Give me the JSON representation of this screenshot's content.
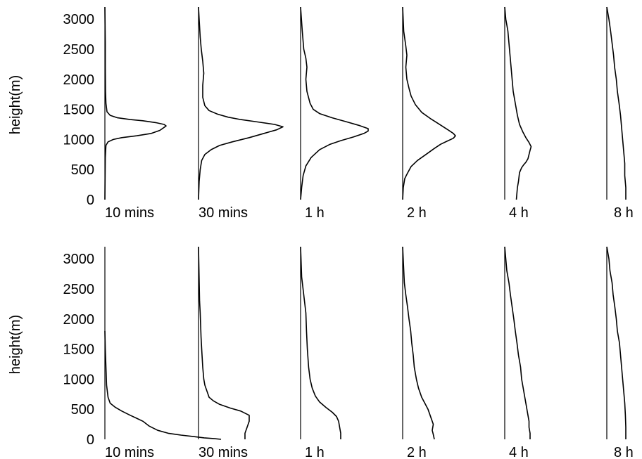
{
  "chart_data": [
    {
      "type": "line",
      "ylabel": "height(m)",
      "ylim": [
        0,
        3200
      ],
      "yticks": [
        0,
        500,
        1000,
        1500,
        2000,
        2500,
        3000
      ],
      "series": [
        {
          "name": "10 mins",
          "points": [
            [
              0,
              0
            ],
            [
              0.2,
              700
            ],
            [
              0.5,
              900
            ],
            [
              1.5,
              960
            ],
            [
              4,
              1000
            ],
            [
              8,
              1030
            ],
            [
              15,
              1060
            ],
            [
              22,
              1100
            ],
            [
              26,
              1150
            ],
            [
              28,
              1200
            ],
            [
              29,
              1225
            ],
            [
              28,
              1250
            ],
            [
              24,
              1280
            ],
            [
              18,
              1310
            ],
            [
              12,
              1330
            ],
            [
              6,
              1360
            ],
            [
              2.5,
              1400
            ],
            [
              1,
              1460
            ],
            [
              0.5,
              1600
            ],
            [
              0.3,
              1800
            ],
            [
              0.2,
              2200
            ],
            [
              0.2,
              2600
            ],
            [
              0,
              3200
            ]
          ]
        },
        {
          "name": "30 mins",
          "points": [
            [
              0,
              0
            ],
            [
              0.3,
              300
            ],
            [
              0.8,
              500
            ],
            [
              1.5,
              650
            ],
            [
              3,
              750
            ],
            [
              6,
              830
            ],
            [
              10,
              900
            ],
            [
              16,
              960
            ],
            [
              24,
              1030
            ],
            [
              31,
              1100
            ],
            [
              37,
              1160
            ],
            [
              40,
              1210
            ],
            [
              36,
              1250
            ],
            [
              28,
              1290
            ],
            [
              20,
              1330
            ],
            [
              14,
              1370
            ],
            [
              9,
              1420
            ],
            [
              5,
              1480
            ],
            [
              3,
              1560
            ],
            [
              2,
              1700
            ],
            [
              2,
              1900
            ],
            [
              2.5,
              2100
            ],
            [
              2,
              2300
            ],
            [
              1.3,
              2500
            ],
            [
              0.8,
              2700
            ],
            [
              0.3,
              3000
            ],
            [
              0,
              3200
            ]
          ]
        },
        {
          "name": "1 h",
          "points": [
            [
              0,
              0
            ],
            [
              0.5,
              200
            ],
            [
              1.2,
              400
            ],
            [
              2.5,
              560
            ],
            [
              5,
              700
            ],
            [
              9,
              830
            ],
            [
              14,
              920
            ],
            [
              19,
              980
            ],
            [
              25,
              1040
            ],
            [
              30,
              1100
            ],
            [
              32,
              1140
            ],
            [
              32,
              1180
            ],
            [
              28,
              1230
            ],
            [
              22,
              1290
            ],
            [
              15,
              1360
            ],
            [
              9,
              1430
            ],
            [
              6,
              1500
            ],
            [
              4.5,
              1600
            ],
            [
              3,
              1800
            ],
            [
              2.5,
              2000
            ],
            [
              3,
              2200
            ],
            [
              2.5,
              2350
            ],
            [
              1.5,
              2500
            ],
            [
              0.8,
              2800
            ],
            [
              0,
              3200
            ]
          ]
        },
        {
          "name": "2 h",
          "points": [
            [
              0,
              0
            ],
            [
              0.3,
              200
            ],
            [
              1,
              350
            ],
            [
              2,
              420
            ],
            [
              4,
              550
            ],
            [
              7,
              650
            ],
            [
              11,
              750
            ],
            [
              15,
              850
            ],
            [
              18,
              920
            ],
            [
              21,
              970
            ],
            [
              24,
              1020
            ],
            [
              25,
              1060
            ],
            [
              24,
              1100
            ],
            [
              21,
              1170
            ],
            [
              17,
              1260
            ],
            [
              13,
              1350
            ],
            [
              9,
              1450
            ],
            [
              6,
              1580
            ],
            [
              4,
              1720
            ],
            [
              3,
              1850
            ],
            [
              2,
              2000
            ],
            [
              1.5,
              2200
            ],
            [
              2,
              2400
            ],
            [
              1.5,
              2550
            ],
            [
              0.5,
              2800
            ],
            [
              0,
              3200
            ]
          ]
        },
        {
          "name": "4 h",
          "points": [
            [
              5.5,
              0
            ],
            [
              6,
              200
            ],
            [
              6.5,
              300
            ],
            [
              7,
              450
            ],
            [
              8,
              530
            ],
            [
              9,
              580
            ],
            [
              10,
              620
            ],
            [
              11,
              680
            ],
            [
              11.5,
              750
            ],
            [
              12,
              820
            ],
            [
              12.5,
              880
            ],
            [
              11.5,
              950
            ],
            [
              10,
              1030
            ],
            [
              8.5,
              1130
            ],
            [
              7,
              1250
            ],
            [
              6,
              1400
            ],
            [
              5,
              1600
            ],
            [
              4,
              1800
            ],
            [
              3.5,
              2000
            ],
            [
              3,
              2200
            ],
            [
              2.5,
              2400
            ],
            [
              2,
              2600
            ],
            [
              1.5,
              2800
            ],
            [
              0.5,
              3000
            ],
            [
              0,
              3200
            ]
          ]
        },
        {
          "name": "8 h",
          "points": [
            [
              9,
              0
            ],
            [
              9,
              200
            ],
            [
              8.5,
              400
            ],
            [
              8.5,
              600
            ],
            [
              8,
              800
            ],
            [
              7.5,
              1000
            ],
            [
              7,
              1200
            ],
            [
              6.5,
              1400
            ],
            [
              5.8,
              1600
            ],
            [
              5,
              1800
            ],
            [
              4.5,
              2000
            ],
            [
              3.7,
              2200
            ],
            [
              3.2,
              2400
            ],
            [
              2.5,
              2600
            ],
            [
              1.8,
              2800
            ],
            [
              1,
              3000
            ],
            [
              0,
              3200
            ]
          ]
        }
      ]
    },
    {
      "type": "line",
      "ylabel": "height(m)",
      "ylim": [
        0,
        3200
      ],
      "yticks": [
        0,
        500,
        1000,
        1500,
        2000,
        2500,
        3000
      ],
      "series": [
        {
          "name": "10 mins",
          "points": [
            [
              55,
              0
            ],
            [
              52,
              10
            ],
            [
              47,
              25
            ],
            [
              42,
              45
            ],
            [
              36,
              70
            ],
            [
              30,
              100
            ],
            [
              25,
              150
            ],
            [
              21,
              220
            ],
            [
              18,
              300
            ],
            [
              15,
              350
            ],
            [
              12,
              400
            ],
            [
              8,
              470
            ],
            [
              5,
              530
            ],
            [
              2.5,
              600
            ],
            [
              1.5,
              700
            ],
            [
              0.8,
              900
            ],
            [
              0.5,
              1200
            ],
            [
              0.2,
              1500
            ],
            [
              0,
              1800
            ]
          ]
        },
        {
          "name": "30 mins",
          "points": [
            [
              22,
              0
            ],
            [
              22,
              100
            ],
            [
              23,
              200
            ],
            [
              24,
              300
            ],
            [
              24,
              400
            ],
            [
              20,
              470
            ],
            [
              15,
              520
            ],
            [
              10,
              580
            ],
            [
              7,
              640
            ],
            [
              5,
              700
            ],
            [
              4,
              800
            ],
            [
              3,
              900
            ],
            [
              2.5,
              1000
            ],
            [
              2,
              1200
            ],
            [
              1.5,
              1500
            ],
            [
              1.2,
              1700
            ],
            [
              1,
              1900
            ],
            [
              0.8,
              2100
            ],
            [
              0.5,
              2300
            ],
            [
              0,
              3200
            ]
          ]
        },
        {
          "name": "1 h",
          "points": [
            [
              19,
              0
            ],
            [
              19,
              100
            ],
            [
              18.5,
              200
            ],
            [
              18,
              300
            ],
            [
              17,
              380
            ],
            [
              15,
              450
            ],
            [
              12,
              530
            ],
            [
              9,
              620
            ],
            [
              7,
              720
            ],
            [
              5.5,
              850
            ],
            [
              4.5,
              1000
            ],
            [
              3.8,
              1200
            ],
            [
              3.2,
              1500
            ],
            [
              2.8,
              1800
            ],
            [
              2.5,
              2100
            ],
            [
              1.5,
              2400
            ],
            [
              0.5,
              2700
            ],
            [
              0,
              3200
            ]
          ]
        },
        {
          "name": "2 h",
          "points": [
            [
              15,
              0
            ],
            [
              14.5,
              80
            ],
            [
              14,
              150
            ],
            [
              14.5,
              250
            ],
            [
              14,
              300
            ],
            [
              13,
              400
            ],
            [
              12,
              500
            ],
            [
              10.5,
              600
            ],
            [
              9,
              700
            ],
            [
              7.5,
              850
            ],
            [
              6.5,
              1000
            ],
            [
              5.5,
              1200
            ],
            [
              5,
              1400
            ],
            [
              4.3,
              1600
            ],
            [
              3.8,
              1800
            ],
            [
              3,
              2000
            ],
            [
              2.3,
              2200
            ],
            [
              1.5,
              2400
            ],
            [
              0.8,
              2600
            ],
            [
              0,
              3200
            ]
          ]
        },
        {
          "name": "4 h",
          "points": [
            [
              12,
              0
            ],
            [
              12,
              100
            ],
            [
              11.5,
              200
            ],
            [
              11.5,
              300
            ],
            [
              11,
              400
            ],
            [
              10.5,
              500
            ],
            [
              10,
              600
            ],
            [
              9.5,
              700
            ],
            [
              8.5,
              900
            ],
            [
              8,
              1000
            ],
            [
              7.5,
              1200
            ],
            [
              6.5,
              1400
            ],
            [
              5.8,
              1600
            ],
            [
              5,
              1800
            ],
            [
              4.3,
              2000
            ],
            [
              3.5,
              2200
            ],
            [
              2.7,
              2400
            ],
            [
              2,
              2600
            ],
            [
              1,
              2800
            ],
            [
              0,
              3200
            ]
          ]
        },
        {
          "name": "8 h",
          "points": [
            [
              9,
              0
            ],
            [
              9,
              200
            ],
            [
              8.8,
              400
            ],
            [
              8.5,
              600
            ],
            [
              8,
              800
            ],
            [
              7.5,
              1000
            ],
            [
              7,
              1200
            ],
            [
              6.5,
              1400
            ],
            [
              6,
              1600
            ],
            [
              5,
              1800
            ],
            [
              4.5,
              2000
            ],
            [
              3.8,
              2200
            ],
            [
              3,
              2400
            ],
            [
              2.5,
              2600
            ],
            [
              1.5,
              2800
            ],
            [
              1,
              3000
            ],
            [
              0,
              3200
            ]
          ]
        }
      ]
    }
  ]
}
